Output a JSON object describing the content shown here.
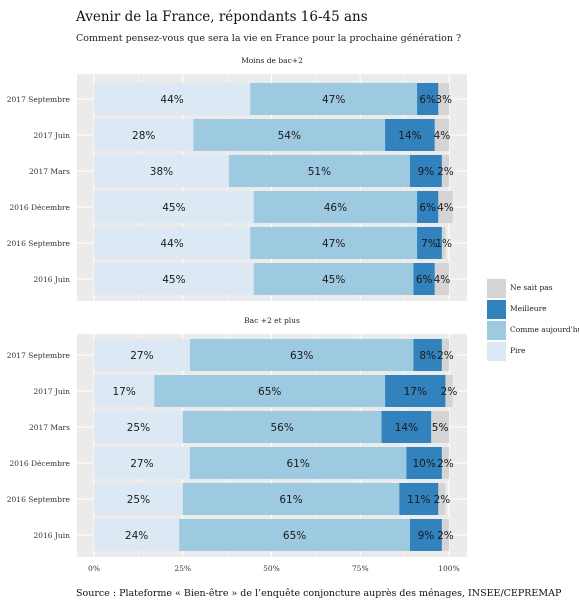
{
  "title": "Avenir de la France, répondants 16-45 ans",
  "subtitle": "Comment pensez-vous que sera la vie en France pour la prochaine génération ?",
  "source": "Source : Plateforme « Bien-être » de l’enquête conjoncture auprès des ménages, INSEE/CEPREMAP",
  "colors": {
    "Pire": "#dce9f5",
    "Comme aujourd'hui": "#9ecae1",
    "Meilleure": "#3182bd",
    "Ne sait pas": "#d4d4d4"
  },
  "legend": [
    {
      "name": "Ne sait pas",
      "label": "Ne sait pas"
    },
    {
      "name": "Meilleure",
      "label": "Meilleure"
    },
    {
      "name": "Comme aujourd'hui",
      "label": "Comme aujourd'hui"
    },
    {
      "name": "Pire",
      "label": "Pire"
    }
  ],
  "chart_data": {
    "type": "bar",
    "orientation": "horizontal",
    "stacked": true,
    "xlim": [
      0,
      100
    ],
    "x_ticks": [
      "0%",
      "25%",
      "50%",
      "75%",
      "100%"
    ],
    "grid": true,
    "legend_position": "right",
    "series_order": [
      "Pire",
      "Comme aujourd'hui",
      "Meilleure",
      "Ne sait pas"
    ],
    "panels": [
      {
        "title": "Moins de bac+2",
        "categories": [
          "2017 Septembre",
          "2017 Juin",
          "2017 Mars",
          "2016 Décembre",
          "2016 Septembre",
          "2016 Juin"
        ],
        "series": [
          {
            "name": "Pire",
            "values": [
              44,
              28,
              38,
              45,
              44,
              45
            ]
          },
          {
            "name": "Comme aujourd'hui",
            "values": [
              47,
              54,
              51,
              46,
              47,
              45
            ]
          },
          {
            "name": "Meilleure",
            "values": [
              6,
              14,
              9,
              6,
              7,
              6
            ]
          },
          {
            "name": "Ne sait pas",
            "values": [
              3,
              4,
              2,
              4,
              1,
              4
            ]
          }
        ]
      },
      {
        "title": "Bac +2 et plus",
        "categories": [
          "2017 Septembre",
          "2017 Juin",
          "2017 Mars",
          "2016 Décembre",
          "2016 Septembre",
          "2016 Juin"
        ],
        "series": [
          {
            "name": "Pire",
            "values": [
              27,
              17,
              25,
              27,
              25,
              24
            ]
          },
          {
            "name": "Comme aujourd'hui",
            "values": [
              63,
              65,
              56,
              61,
              61,
              65
            ]
          },
          {
            "name": "Meilleure",
            "values": [
              8,
              17,
              14,
              10,
              11,
              9
            ]
          },
          {
            "name": "Ne sait pas",
            "values": [
              2,
              2,
              5,
              2,
              2,
              2
            ]
          }
        ]
      }
    ]
  }
}
